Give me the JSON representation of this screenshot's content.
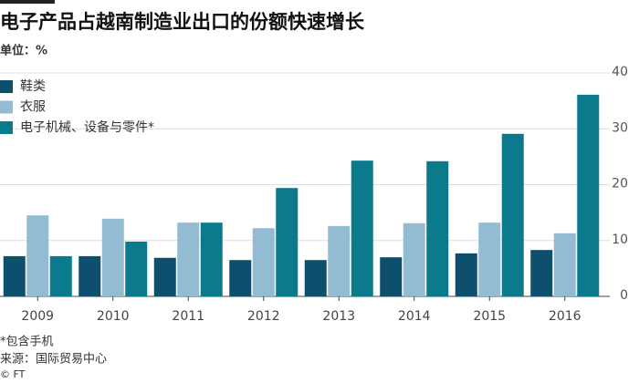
{
  "chart_data": {
    "type": "bar",
    "title": "电子产品占越南制造业出口的份额快速增长",
    "subtitle": "单位：%",
    "categories": [
      "2009",
      "2010",
      "2011",
      "2012",
      "2013",
      "2014",
      "2015",
      "2016"
    ],
    "series": [
      {
        "name": "鞋类",
        "color": "#0f4f6e",
        "values": [
          7.2,
          7.2,
          6.9,
          6.5,
          6.5,
          7.0,
          7.7,
          8.3
        ]
      },
      {
        "name": "衣服",
        "color": "#93bcd3",
        "values": [
          14.5,
          13.9,
          13.2,
          12.2,
          12.6,
          13.1,
          13.2,
          11.3
        ]
      },
      {
        "name": "电子机械、设备与零件*",
        "color": "#0b7a8c",
        "values": [
          7.2,
          9.8,
          13.2,
          19.4,
          24.3,
          24.2,
          29.1,
          36.1
        ]
      }
    ],
    "ylim": [
      0,
      40
    ],
    "yticks": [
      0,
      10,
      20,
      30,
      40
    ],
    "grid": true,
    "legend": "top-left",
    "footnote": "*包含手机",
    "source": "来源：国际贸易中心",
    "credit": "© FT"
  }
}
